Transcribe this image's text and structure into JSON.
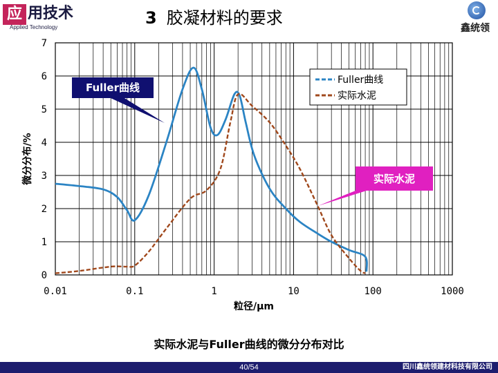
{
  "header": {
    "logo_char": "应",
    "logo_text": "用技术",
    "logo_sub": "Applied Technology",
    "title_num": "3",
    "title": "胶凝材料的要求",
    "company_logo_text": "鑫统领"
  },
  "callouts": {
    "fuller": "Fuller曲线",
    "cement": "实际水泥"
  },
  "caption": "实际水泥与Fuller曲线的微分分布对比",
  "footer": {
    "page": "40/54",
    "org": "四川鑫统领建材科技有限公司"
  },
  "colors": {
    "fuller": "#2b84c4",
    "cement": "#a0481c",
    "fuller_callout": "#101070",
    "cement_callout": "#e020c0",
    "footer": "#1d1d6e"
  },
  "chart_data": {
    "type": "line",
    "xlabel": "粒径/μm",
    "ylabel": "微分分布/%",
    "x_scale": "log",
    "xlim": [
      0.01,
      1000
    ],
    "ylim": [
      0,
      7
    ],
    "x_ticks": [
      "0.01",
      "0.1",
      "1",
      "10",
      "100",
      "1000"
    ],
    "y_ticks": [
      "0",
      "1",
      "2",
      "3",
      "4",
      "5",
      "6",
      "7"
    ],
    "grid": true,
    "legend_position": "top-right",
    "series": [
      {
        "name": "Fuller曲线",
        "x": [
          0.01,
          0.02,
          0.04,
          0.06,
          0.08,
          0.1,
          0.15,
          0.25,
          0.4,
          0.55,
          0.7,
          0.9,
          1.1,
          1.4,
          1.8,
          2.1,
          2.5,
          3.2,
          5,
          8,
          12,
          20,
          30,
          50,
          80,
          83
        ],
        "values": [
          2.75,
          2.68,
          2.58,
          2.35,
          1.95,
          1.65,
          2.4,
          4.0,
          5.6,
          6.25,
          5.6,
          4.45,
          4.22,
          4.7,
          5.45,
          5.4,
          4.6,
          3.6,
          2.6,
          2.0,
          1.6,
          1.25,
          1.0,
          0.75,
          0.55,
          0.1
        ]
      },
      {
        "name": "实际水泥",
        "x": [
          0.01,
          0.02,
          0.05,
          0.08,
          0.1,
          0.15,
          0.25,
          0.5,
          0.8,
          1.2,
          1.6,
          2.0,
          3.0,
          5,
          8,
          12,
          20,
          30,
          50,
          70,
          80
        ],
        "values": [
          0.05,
          0.12,
          0.25,
          0.25,
          0.28,
          0.7,
          1.4,
          2.3,
          2.55,
          3.2,
          4.6,
          5.45,
          5.1,
          4.6,
          3.9,
          3.2,
          2.1,
          1.2,
          0.5,
          0.12,
          0.05
        ]
      }
    ]
  }
}
